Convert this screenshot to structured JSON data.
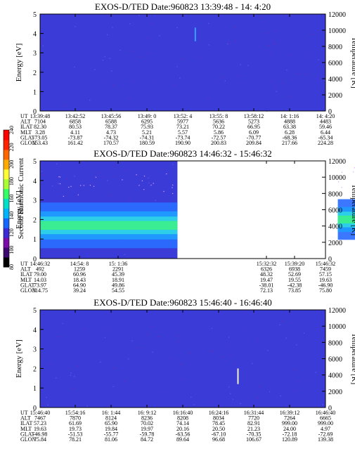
{
  "chart_data": [
    {
      "type": "heatmap",
      "title": "EXOS-D/TED   Date:960823  13:39:48 - 14: 4:20",
      "ylabel": "Energy [eV]",
      "y2label": "Temperature [K]",
      "ylim": [
        0,
        5
      ],
      "y2lim": [
        0,
        12000
      ],
      "yticks": [
        "0",
        "1",
        "2",
        "3",
        "4",
        "5"
      ],
      "y2ticks": [
        "0",
        "2000",
        "4000",
        "6000",
        "8000",
        "10000",
        "12000"
      ],
      "data_gap": null,
      "features": [
        {
          "kind": "streak",
          "x_index": 4.35,
          "e_low": 3.6,
          "e_high": 4.3,
          "color": "#3aa0ff"
        }
      ],
      "orbit_labels": [
        "UT",
        "ALT",
        "ILAT",
        "MLT",
        "GLAT",
        "GLON"
      ],
      "orbit_table": [
        [
          "13:39:48",
          "7104",
          "82.30",
          "3.28",
          "-73.05",
          "153.43"
        ],
        [
          "13:42:52",
          "6858",
          "80.53",
          "4.11",
          "-73.87",
          "161.42"
        ],
        [
          "13:45:56",
          "6588",
          "78.37",
          "4.73",
          "-74.32",
          "170.57"
        ],
        [
          "13:49: 0",
          "6295",
          "75.93",
          "5.21",
          "-74.31",
          "180.59"
        ],
        [
          "13:52: 4",
          "5977",
          "73.21",
          "5.57",
          "-73.74",
          "190.90"
        ],
        [
          "13:55: 8",
          "5636",
          "70.22",
          "5.86",
          "-72.57",
          "200.83"
        ],
        [
          "13:58:12",
          "5273",
          "66.95",
          "6.09",
          "-70.77",
          "209.84"
        ],
        [
          "14: 1:16",
          "4888",
          "63.38",
          "6.28",
          "-68.36",
          "217.66"
        ],
        [
          "14: 4:20",
          "4483",
          "59.46",
          "6.44",
          "-65.34",
          "224.28"
        ]
      ]
    },
    {
      "type": "heatmap",
      "title": "EXOS-D/TED   Date:960823  14:46:32 - 15:46:32",
      "ylabel": "Energy [eV]",
      "y2label": "Temperature [K]",
      "ylim": [
        0,
        5
      ],
      "y2lim": [
        0,
        12000
      ],
      "yticks": [
        "0",
        "1",
        "2",
        "3",
        "4",
        "5"
      ],
      "y2ticks": [
        "0",
        "2000",
        "4000",
        "6000",
        "8000",
        "10000",
        "12000"
      ],
      "data_gap": [
        2.4,
        5.4
      ],
      "features": [
        {
          "kind": "band",
          "x_from": 0,
          "x_to": 2.4,
          "e_center": 1.7,
          "e_width": 0.9
        },
        {
          "kind": "band",
          "x_from": 5.4,
          "x_to": 7.0,
          "e_center": 2.0,
          "e_width": 0.8
        },
        {
          "kind": "streak",
          "x_index": 6.0,
          "e_low": 1.6,
          "e_high": 4.7,
          "color": "#ffffaa"
        }
      ],
      "orbit_labels": [
        "UT",
        "ALT",
        "ILAT",
        "MLT",
        "GLAT",
        "GLON"
      ],
      "orbit_table": [
        [
          "14:46:32",
          "492",
          "79.00",
          "14.03",
          "73.97",
          "314.75"
        ],
        [
          "14:54: 8",
          "1259",
          "60.96",
          "18.43",
          "64.90",
          "39.24"
        ],
        [
          "15: 1:36",
          "2291",
          "45.39",
          "18.91",
          "49.86",
          "54.55"
        ],
        [
          "15:32:32",
          "6326",
          "48.32",
          "19.47",
          "-38.01",
          "72.13"
        ],
        [
          "15:39:20",
          "6938",
          "52.69",
          "19.55",
          "-42.38",
          "73.85"
        ],
        [
          "15:46:32",
          "7459",
          "57.15",
          "19.63",
          "-46.90",
          "75.80"
        ]
      ],
      "colorbar": {
        "label": "Second Harmonic Current",
        "ticks": [
          "80",
          "100",
          "120",
          "140",
          "160",
          "180",
          "200",
          "220",
          "240"
        ],
        "colors": [
          "#000000",
          "#3c0a6e",
          "#7a0ca8",
          "#3b2bd6",
          "#1466ff",
          "#00b4ff",
          "#00e0c8",
          "#33ff66",
          "#aaff33",
          "#ffff33",
          "#ffaa00",
          "#ff6600",
          "#ff2200",
          "#ff0000"
        ]
      }
    },
    {
      "type": "heatmap",
      "title": "EXOS-D/TED   Date:960823  15:46:40 - 16:46:40",
      "ylabel": "Energy [eV]",
      "y2label": "Temperature [K]",
      "ylim": [
        0,
        5
      ],
      "y2lim": [
        0,
        12000
      ],
      "yticks": [
        "0",
        "1",
        "2",
        "3",
        "4",
        "5"
      ],
      "y2ticks": [
        "0",
        "2000",
        "4000",
        "6000",
        "8000",
        "10000",
        "12000"
      ],
      "data_gap": null,
      "features": [
        {
          "kind": "streak",
          "x_index": 5.55,
          "e_low": 1.2,
          "e_high": 2.0,
          "color": "#f0f0c0"
        }
      ],
      "orbit_labels": [
        "UT",
        "ALT",
        "ILAT",
        "MLT",
        "GLAT",
        "GLON"
      ],
      "orbit_table": [
        [
          "15:46:40",
          "7467",
          "57.23",
          "19.63",
          "-46.98",
          "75.84"
        ],
        [
          "15:54:16",
          "7870",
          "61.69",
          "19.73",
          "-51.53",
          "78.21"
        ],
        [
          "16: 1:44",
          "8124",
          "65.90",
          "19.84",
          "-55.77",
          "81.06"
        ],
        [
          "16: 9:12",
          "8236",
          "70.02",
          "19.97",
          "-59.78",
          "84.72"
        ],
        [
          "16:16:40",
          "8208",
          "74.14",
          "20.16",
          "-63.56",
          "89.64"
        ],
        [
          "16:24:16",
          "8034",
          "78.45",
          "20.50",
          "-67.10",
          "96.68"
        ],
        [
          "16:31:44",
          "7720",
          "82.91",
          "21.23",
          "-70.35",
          "106.67"
        ],
        [
          "16:39:12",
          "7264",
          "999.00",
          "24.00",
          "-72.18",
          "120.89"
        ],
        [
          "16:46:40",
          "6665",
          "999.00",
          "4.97",
          "-72.69",
          "139.38"
        ]
      ]
    }
  ]
}
